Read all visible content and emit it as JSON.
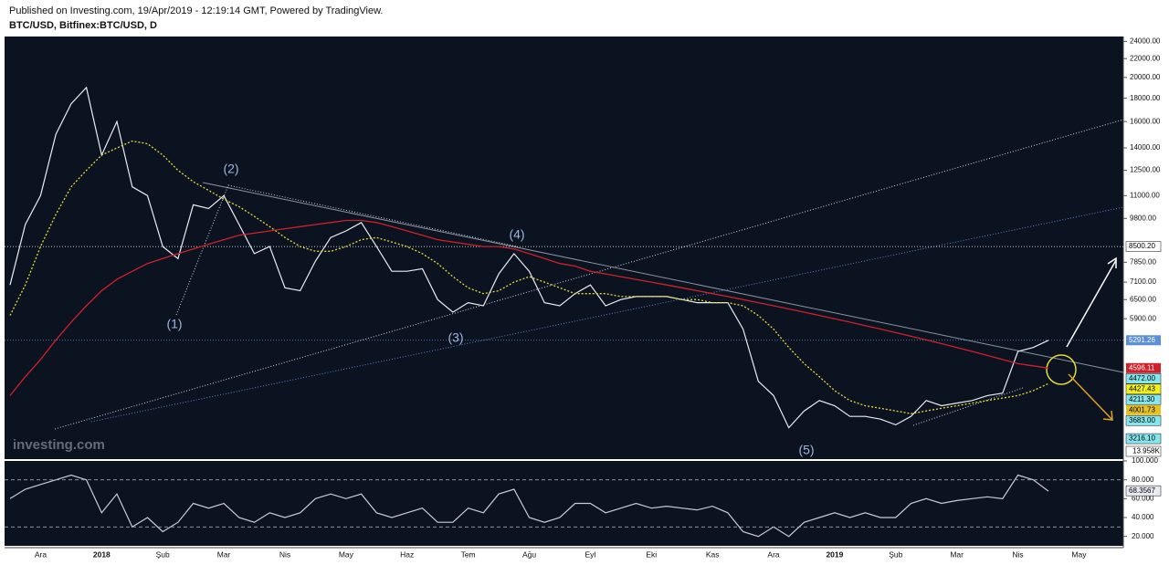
{
  "header": {
    "published": "Published on Investing.com, 19/Apr/2019 - 12:19:14 GMT, Powered by TradingView.",
    "symbol": "BTC/USD, Bitfinex:BTC/USD, D"
  },
  "chart_data": [
    {
      "type": "line",
      "log_scale": true,
      "categories": [
        null,
        null,
        "Ara",
        null,
        null,
        null,
        "2018",
        null,
        null,
        null,
        "Şub",
        null,
        null,
        null,
        "Mar",
        null,
        null,
        null,
        "Nis",
        null,
        null,
        null,
        "May",
        null,
        null,
        null,
        "Haz",
        null,
        null,
        null,
        "Tem",
        null,
        null,
        null,
        "Ağu",
        null,
        null,
        null,
        "Eyl",
        null,
        null,
        null,
        "Eki",
        null,
        null,
        null,
        "Kas",
        null,
        null,
        null,
        "Ara",
        null,
        null,
        null,
        "2019",
        null,
        null,
        null,
        "Şub",
        null,
        null,
        null,
        "Mar",
        null,
        null,
        null,
        "Nis",
        null,
        null,
        null,
        "May",
        null
      ],
      "series": [
        {
          "color": "#e8ecf2",
          "values": [
            7000,
            9500,
            11000,
            15000,
            17500,
            19000,
            13500,
            16000,
            11500,
            11000,
            8500,
            8000,
            10500,
            10300,
            11000,
            9500,
            8200,
            8500,
            6900,
            6800,
            7900,
            8900,
            9200,
            9600,
            8500,
            7500,
            7500,
            7600,
            6500,
            6100,
            6400,
            6300,
            7400,
            8200,
            7500,
            6400,
            6300,
            6700,
            7000,
            6300,
            6500,
            6600,
            6600,
            6600,
            6500,
            6400,
            6400,
            6400,
            5600,
            4300,
            4000,
            3400,
            3700,
            3900,
            3800,
            3600,
            3600,
            3550,
            3450,
            3600,
            3900,
            3800,
            3850,
            3900,
            4000,
            4050,
            5000,
            5100,
            5290,
            null,
            null,
            null
          ]
        },
        {
          "color": "#e6d83a",
          "values": [
            6000,
            7000,
            8500,
            10000,
            11500,
            12500,
            13500,
            14000,
            14500,
            14300,
            13500,
            12500,
            11800,
            11300,
            10800,
            10400,
            9900,
            9400,
            8900,
            8500,
            8300,
            8300,
            8500,
            8800,
            8900,
            8700,
            8500,
            8200,
            7800,
            7300,
            6900,
            6700,
            6800,
            7100,
            7300,
            7100,
            6900,
            6700,
            6700,
            6700,
            6600,
            6600,
            6600,
            6600,
            6500,
            6500,
            6400,
            6400,
            6300,
            6000,
            5600,
            5100,
            4700,
            4400,
            4100,
            3900,
            3800,
            3750,
            3700,
            3650,
            3700,
            3750,
            3800,
            3850,
            3900,
            3950,
            4000,
            4100,
            4250,
            null,
            null,
            null
          ]
        },
        {
          "color": "#d0202a",
          "values": [
            4000,
            4400,
            4800,
            5300,
            5800,
            6300,
            6800,
            7200,
            7500,
            7800,
            8000,
            8200,
            8400,
            8600,
            8800,
            9000,
            9100,
            9200,
            9300,
            9400,
            9500,
            9600,
            9700,
            9700,
            9600,
            9400,
            9200,
            9000,
            8800,
            8700,
            8600,
            8500,
            8500,
            8400,
            8200,
            8000,
            7800,
            7700,
            7500,
            7400,
            7300,
            7200,
            7100,
            7000,
            6900,
            6800,
            6700,
            6600,
            6500,
            6400,
            6300,
            6200,
            6100,
            6000,
            5900,
            5800,
            5700,
            5600,
            5500,
            5400,
            5300,
            5200,
            5100,
            5000,
            4900,
            4800,
            4700,
            4650,
            4596,
            null,
            null,
            null
          ]
        }
      ],
      "ylim": [
        2900,
        24600
      ],
      "yticks": [
        {
          "value": 24000,
          "label": "24000.00"
        },
        {
          "value": 22000,
          "label": "22000.00"
        },
        {
          "value": 20000,
          "label": "20000.00"
        },
        {
          "value": 18000,
          "label": "18000.00"
        },
        {
          "value": 16000,
          "label": "16000.00"
        },
        {
          "value": 14000,
          "label": "14000.00"
        },
        {
          "value": 12500,
          "label": "12500.00"
        },
        {
          "value": 11000,
          "label": "11000.00"
        },
        {
          "value": 9800,
          "label": "9800.00"
        },
        {
          "value": 7850,
          "label": "7850.00"
        },
        {
          "value": 7100,
          "label": "7100.00"
        },
        {
          "value": 6500,
          "label": "6500.00"
        },
        {
          "value": 5900,
          "label": "5900.00"
        }
      ],
      "price_tags": [
        {
          "value": 8500.2,
          "label": "8500.20",
          "color": "#ffffff"
        },
        {
          "value": 5291.26,
          "label": "5291.26",
          "color": "#5b8fd8"
        },
        {
          "value": 4596.11,
          "label": "4596.11",
          "color": "#d0202a"
        },
        {
          "value": 4472.0,
          "label": "4472.00",
          "color": "#86e6ee"
        },
        {
          "value": 4427.43,
          "label": "4427.43",
          "color": "#f2f21a"
        },
        {
          "value": 4211.3,
          "label": "4211.30",
          "color": "#86e6ee"
        },
        {
          "value": 4001.73,
          "label": "4001.73",
          "color": "#e8c020"
        },
        {
          "value": 3683.0,
          "label": "3683.00",
          "color": "#86e6ee"
        },
        {
          "value": 3216.1,
          "label": "3216.10",
          "color": "#86e6ee"
        }
      ],
      "annotations": [
        "(1)",
        "(2)",
        "(3)",
        "(4)",
        "(5)"
      ],
      "watermark": "investing.com",
      "volume_label": "13.958K"
    },
    {
      "type": "line",
      "series": [
        {
          "color": "#c8ccd4",
          "values": [
            60,
            70,
            75,
            80,
            85,
            80,
            45,
            65,
            30,
            40,
            25,
            35,
            55,
            50,
            55,
            40,
            35,
            45,
            40,
            45,
            60,
            65,
            60,
            65,
            45,
            40,
            45,
            50,
            35,
            35,
            50,
            45,
            65,
            70,
            40,
            35,
            40,
            55,
            55,
            45,
            50,
            55,
            50,
            52,
            50,
            48,
            52,
            45,
            25,
            20,
            30,
            20,
            35,
            40,
            45,
            40,
            45,
            40,
            40,
            55,
            60,
            55,
            58,
            60,
            62,
            60,
            85,
            80,
            68,
            null,
            null,
            null
          ]
        }
      ],
      "ylim": [
        10,
        100
      ],
      "yticks": [
        {
          "value": 100,
          "label": "100.000"
        },
        {
          "value": 80,
          "label": "80.000"
        },
        {
          "value": 60,
          "label": "60.000"
        },
        {
          "value": 40,
          "label": "40.000"
        },
        {
          "value": 20,
          "label": "20.000"
        }
      ],
      "levels": [
        80,
        30
      ],
      "value_tag": {
        "value": 68.3567,
        "label": "68.3567"
      }
    }
  ]
}
